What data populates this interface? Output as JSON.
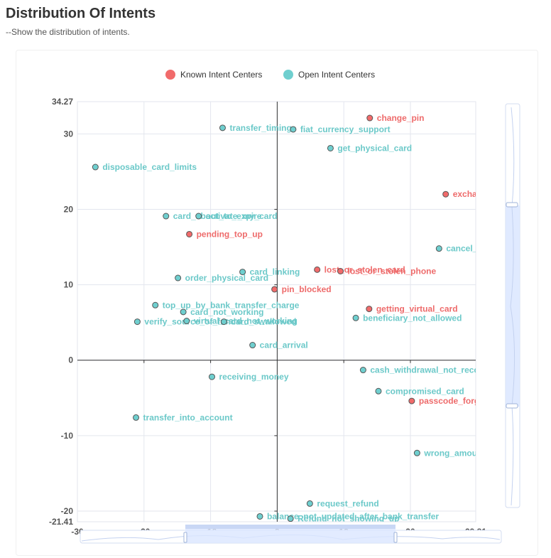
{
  "page": {
    "title": "Distribution Of Intents",
    "subtitle": "--Show the distribution of intents."
  },
  "chart_data": {
    "type": "scatter",
    "xlim": [
      -30,
      29.81
    ],
    "ylim": [
      -21.41,
      34.27
    ],
    "x_ticks": [
      "-30",
      "-20",
      "-10",
      "0",
      "10",
      "20",
      "29.81"
    ],
    "y_ticks": [
      "34.27",
      "30",
      "20",
      "10",
      "0",
      "-10",
      "-20",
      "-21.41"
    ],
    "grid": true,
    "legend_position": "top-center",
    "series": [
      {
        "name": "Known Intent Centers",
        "color": "#f16b6b",
        "points": [
          {
            "label": "change_pin",
            "x": 13.9,
            "y": 32.1
          },
          {
            "label": "exchange_via_app",
            "x": 25.3,
            "y": 22.0
          },
          {
            "label": "pending_top_up",
            "x": -13.2,
            "y": 16.7
          },
          {
            "label": "lost_or_stolen_card",
            "x": 6.0,
            "y": 12.0
          },
          {
            "label": "lost_or_stolen_phone",
            "x": 9.5,
            "y": 11.8
          },
          {
            "label": "pin_blocked",
            "x": -0.4,
            "y": 9.4
          },
          {
            "label": "getting_virtual_card",
            "x": 13.8,
            "y": 6.8
          },
          {
            "label": "passcode_forgotten",
            "x": 20.2,
            "y": -5.4
          }
        ]
      },
      {
        "name": "Open Intent Centers",
        "color": "#6fcfcf",
        "points": [
          {
            "label": "transfer_timing",
            "x": -8.2,
            "y": 30.8
          },
          {
            "label": "fiat_currency_support",
            "x": 2.4,
            "y": 30.6
          },
          {
            "label": "get_physical_card",
            "x": 8.0,
            "y": 28.1
          },
          {
            "label": "disposable_card_limits",
            "x": -27.3,
            "y": 25.6
          },
          {
            "label": "card_about_to_expire",
            "x": -16.7,
            "y": 19.1
          },
          {
            "label": "activate_my_card",
            "x": -11.8,
            "y": 19.1
          },
          {
            "label": "cancel_transfer",
            "x": 24.3,
            "y": 14.8
          },
          {
            "label": "card_linking",
            "x": -5.2,
            "y": 11.7
          },
          {
            "label": "order_physical_card",
            "x": -14.9,
            "y": 10.9
          },
          {
            "label": "top_up_by_bank_transfer_charge",
            "x": -18.3,
            "y": 7.3
          },
          {
            "label": "card_not_working",
            "x": -14.1,
            "y": 6.4
          },
          {
            "label": "beneficiary_not_allowed",
            "x": 11.8,
            "y": 5.6
          },
          {
            "label": "verify_source_of_funds",
            "x": -21.0,
            "y": 5.1
          },
          {
            "label": "virtual_card_not_working",
            "x": -13.6,
            "y": 5.2
          },
          {
            "label": "card_swallowed",
            "x": -8.0,
            "y": 5.1
          },
          {
            "label": "card_arrival",
            "x": -3.7,
            "y": 2.0
          },
          {
            "label": "cash_withdrawal_not_recognised",
            "x": 12.9,
            "y": -1.3
          },
          {
            "label": "receiving_money",
            "x": -9.8,
            "y": -2.2
          },
          {
            "label": "compromised_card",
            "x": 15.2,
            "y": -4.1
          },
          {
            "label": "transfer_into_account",
            "x": -21.2,
            "y": -7.6
          },
          {
            "label": "wrong_amount_of_cash_received",
            "x": 21.0,
            "y": -12.3
          },
          {
            "label": "request_refund",
            "x": 4.9,
            "y": -19.0
          },
          {
            "label": "balance_not_updated_after_bank_transfer",
            "x": -2.6,
            "y": -20.7
          },
          {
            "label": "Refund_not_showing_up",
            "x": 2.0,
            "y": -21.0
          }
        ]
      }
    ]
  }
}
